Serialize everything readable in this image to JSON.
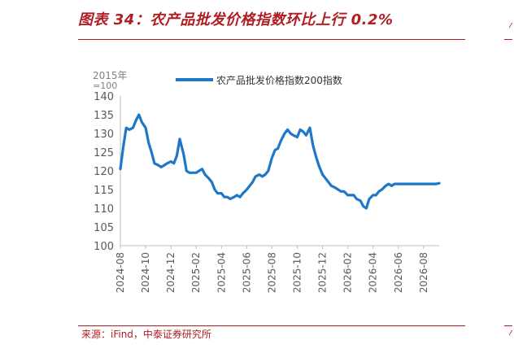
{
  "title": "图表 34：农产品批发价格指数环比上行 0.2%",
  "source": "来源：iFind，中泰证券研究所",
  "colors": {
    "accent": "#b01e24",
    "series": "#1f77c8",
    "axis_text": "#595959"
  },
  "chart_data": {
    "type": "line",
    "unit_lines": [
      "2015年",
      "=100"
    ],
    "ylim": [
      100,
      140
    ],
    "yticks": [
      100,
      105,
      110,
      115,
      120,
      125,
      130,
      135,
      140
    ],
    "xticks": [
      "2024-08",
      "2024-10",
      "2024-12",
      "2025-02",
      "2025-04",
      "2025-06",
      "2025-08",
      "2025-10",
      "2025-12",
      "2026-02",
      "2026-04",
      "2026-06",
      "2026-08"
    ],
    "grid": false,
    "legend": "top-center",
    "series": [
      {
        "name": "农产品批发价格指数200指数",
        "x": [
          "2024-08-01",
          "2024-08-08",
          "2024-08-15",
          "2024-08-22",
          "2024-09-01",
          "2024-09-08",
          "2024-09-15",
          "2024-09-22",
          "2024-10-01",
          "2024-10-08",
          "2024-10-15",
          "2024-10-22",
          "2024-11-01",
          "2024-11-08",
          "2024-11-15",
          "2024-11-22",
          "2024-12-01",
          "2024-12-08",
          "2024-12-15",
          "2024-12-22",
          "2025-01-01",
          "2025-01-08",
          "2025-01-15",
          "2025-01-22",
          "2025-02-01",
          "2025-02-08",
          "2025-02-15",
          "2025-02-22",
          "2025-03-01",
          "2025-03-08",
          "2025-03-15",
          "2025-03-22",
          "2025-04-01",
          "2025-04-08",
          "2025-04-15",
          "2025-04-22",
          "2025-05-01",
          "2025-05-08",
          "2025-05-15",
          "2025-05-22",
          "2025-06-01",
          "2025-06-08",
          "2025-06-15",
          "2025-06-22",
          "2025-07-01",
          "2025-07-08",
          "2025-07-15",
          "2025-07-22",
          "2025-08-01",
          "2025-08-08",
          "2025-08-15",
          "2025-08-22",
          "2025-09-01",
          "2025-09-08",
          "2025-09-15",
          "2025-09-22",
          "2025-10-01",
          "2025-10-08",
          "2025-10-15",
          "2025-10-22",
          "2025-11-01",
          "2025-11-08",
          "2025-11-15",
          "2025-11-22",
          "2025-12-01",
          "2025-12-08",
          "2025-12-15",
          "2025-12-22",
          "2026-01-01",
          "2026-01-08",
          "2026-01-15",
          "2026-01-22",
          "2026-02-01",
          "2026-02-08",
          "2026-02-15",
          "2026-02-22",
          "2026-03-01",
          "2026-03-08",
          "2026-03-15",
          "2026-03-22",
          "2026-04-01",
          "2026-04-08",
          "2026-04-15",
          "2026-04-22",
          "2026-05-01",
          "2026-05-08",
          "2026-05-15",
          "2026-05-22",
          "2026-06-01",
          "2026-06-08",
          "2026-06-15",
          "2026-06-22",
          "2026-07-01",
          "2026-07-08",
          "2026-07-15",
          "2026-07-22",
          "2026-08-01",
          "2026-08-08",
          "2026-08-15",
          "2026-08-22",
          "2026-09-01",
          "2026-09-08"
        ],
        "values": [
          120.5,
          126.5,
          131.5,
          131.0,
          131.5,
          133.5,
          135.0,
          133.0,
          131.5,
          127.5,
          125.0,
          122.0,
          121.5,
          121.0,
          121.5,
          122.0,
          122.5,
          122.0,
          124.0,
          128.5,
          124.5,
          120.0,
          119.5,
          119.5,
          119.5,
          120.0,
          120.5,
          119.0,
          118.0,
          117.0,
          115.0,
          114.0,
          114.0,
          113.0,
          113.0,
          112.5,
          113.0,
          113.5,
          113.0,
          114.0,
          115.0,
          116.0,
          117.0,
          118.5,
          119.0,
          118.5,
          119.0,
          120.0,
          123.5,
          125.5,
          126.0,
          128.0,
          130.0,
          131.0,
          130.0,
          129.5,
          129.0,
          131.0,
          130.5,
          129.5,
          131.5,
          127.0,
          124.0,
          121.5,
          119.0,
          118.0,
          117.0,
          116.0,
          115.5,
          115.0,
          114.5,
          114.5,
          113.5,
          113.5,
          113.5,
          112.5,
          112.0,
          110.5,
          110.0,
          112.5,
          113.5,
          113.5,
          114.5,
          115.0,
          116.0,
          116.5,
          116.0,
          116.5,
          116.5,
          116.5,
          116.5,
          116.5,
          116.5,
          116.5,
          116.5,
          116.5,
          116.5,
          116.5,
          116.5,
          116.5,
          116.5,
          116.7
        ]
      }
    ]
  }
}
